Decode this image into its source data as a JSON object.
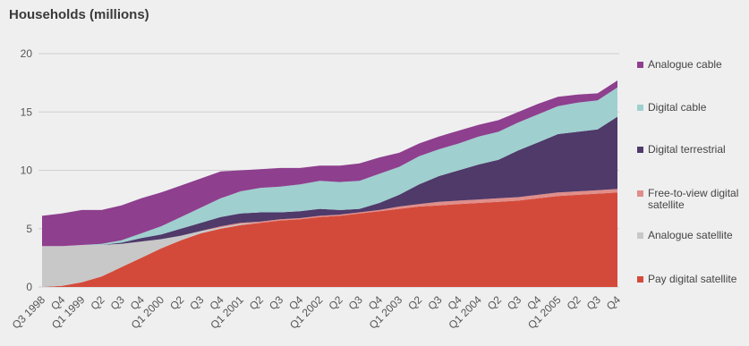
{
  "chart_data": {
    "type": "area",
    "title": "Households (millions)",
    "ylim": [
      0,
      20
    ],
    "yticks": [
      "0",
      "5",
      "10",
      "15",
      "20"
    ],
    "grid": true,
    "legend_position": "right",
    "categories": [
      "Q3 1998",
      "Q4",
      "Q1 1999",
      "Q2",
      "Q3",
      "Q4",
      "Q1 2000",
      "Q2",
      "Q3",
      "Q4",
      "Q1 2001",
      "Q2",
      "Q3",
      "Q4",
      "Q1 2002",
      "Q2",
      "Q3",
      "Q4",
      "Q1 2003",
      "Q2",
      "Q3",
      "Q4",
      "Q1 2004",
      "Q2",
      "Q3",
      "Q4",
      "Q1 2005",
      "Q2",
      "Q3",
      "Q4"
    ],
    "series": [
      {
        "name": "Pay digital satellite",
        "color": "#d44a3a",
        "values": [
          0.0,
          0.1,
          0.4,
          0.9,
          1.7,
          2.5,
          3.3,
          4.0,
          4.6,
          5.0,
          5.3,
          5.5,
          5.7,
          5.8,
          6.0,
          6.1,
          6.3,
          6.5,
          6.7,
          6.9,
          7.0,
          7.1,
          7.2,
          7.3,
          7.4,
          7.6,
          7.8,
          7.9,
          8.0,
          8.1
        ]
      },
      {
        "name": "Analogue satellite",
        "color": "#c8c8c8",
        "values": [
          3.5,
          3.4,
          3.2,
          2.7,
          2.0,
          1.4,
          0.8,
          0.4,
          0.2,
          0.1,
          0.1,
          0.0,
          0.0,
          0.0,
          0.0,
          0.0,
          0.0,
          0.0,
          0.0,
          0.0,
          0.0,
          0.0,
          0.0,
          0.0,
          0.0,
          0.0,
          0.0,
          0.0,
          0.0,
          0.0
        ]
      },
      {
        "name": "Free-to-view digital satellite",
        "color": "#e08e8a",
        "values": [
          0.0,
          0.0,
          0.0,
          0.0,
          0.0,
          0.0,
          0.0,
          0.0,
          0.0,
          0.1,
          0.1,
          0.1,
          0.1,
          0.1,
          0.1,
          0.1,
          0.1,
          0.1,
          0.2,
          0.2,
          0.3,
          0.3,
          0.3,
          0.3,
          0.3,
          0.3,
          0.3,
          0.3,
          0.3,
          0.3
        ]
      },
      {
        "name": "Digital terrestrial",
        "color": "#4f3a6a",
        "values": [
          0.0,
          0.0,
          0.0,
          0.0,
          0.1,
          0.3,
          0.4,
          0.6,
          0.7,
          0.8,
          0.8,
          0.8,
          0.6,
          0.6,
          0.6,
          0.4,
          0.3,
          0.6,
          1.0,
          1.7,
          2.2,
          2.6,
          3.0,
          3.3,
          4.0,
          4.5,
          5.0,
          5.1,
          5.2,
          6.2
        ]
      },
      {
        "name": "Digital cable",
        "color": "#9fcfcf",
        "values": [
          0.0,
          0.0,
          0.0,
          0.1,
          0.2,
          0.4,
          0.7,
          1.0,
          1.3,
          1.6,
          1.9,
          2.1,
          2.2,
          2.3,
          2.4,
          2.4,
          2.4,
          2.5,
          2.4,
          2.4,
          2.3,
          2.3,
          2.4,
          2.4,
          2.4,
          2.4,
          2.4,
          2.5,
          2.5,
          2.5
        ]
      },
      {
        "name": "Analogue cable",
        "color": "#8e3f8e",
        "values": [
          2.6,
          2.8,
          3.0,
          2.9,
          3.0,
          3.0,
          2.9,
          2.7,
          2.5,
          2.3,
          1.8,
          1.6,
          1.6,
          1.4,
          1.3,
          1.4,
          1.5,
          1.4,
          1.2,
          1.1,
          1.1,
          1.1,
          1.0,
          1.0,
          0.9,
          0.9,
          0.8,
          0.7,
          0.6,
          0.6
        ]
      }
    ]
  }
}
